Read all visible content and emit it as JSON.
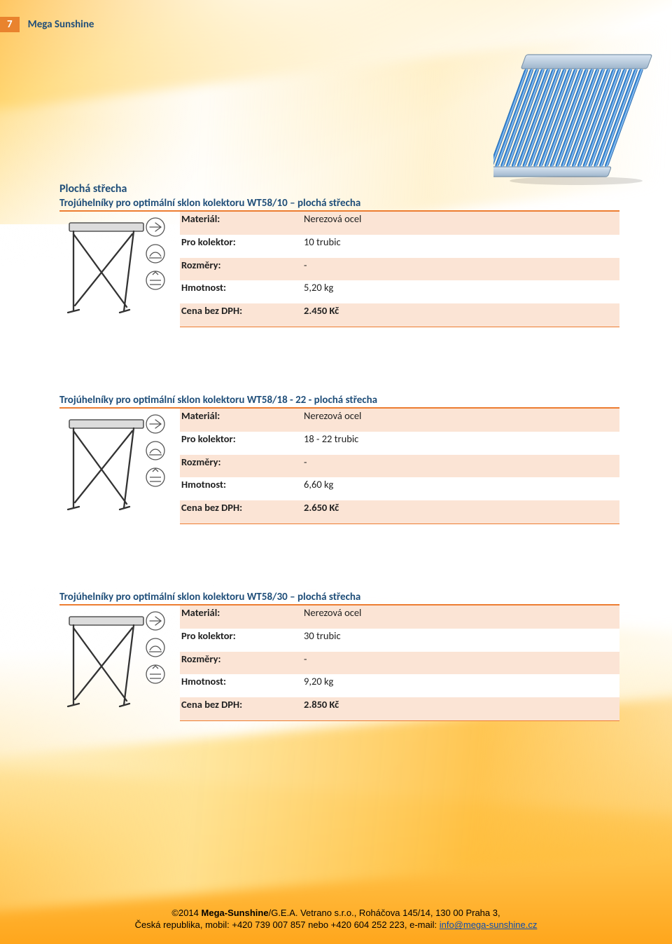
{
  "page": {
    "number": "7",
    "title": "Mega Sunshine"
  },
  "section_heading": "Plochá střecha",
  "products": [
    {
      "title": "Trojúhelníky pro optimální sklon kolektoru WT58/10 – plochá střecha",
      "specs": {
        "material": "Nerezová ocel",
        "collector": "10 trubic",
        "dims": "-",
        "weight": "5,20 kg",
        "price": "2.450 Kč"
      }
    },
    {
      "title": "Trojúhelníky pro optimální sklon kolektoru WT58/18 - 22 - plochá střecha",
      "specs": {
        "material": "Nerezová ocel",
        "collector": "18 - 22 trubic",
        "dims": "-",
        "weight": "6,60 kg",
        "price": "2.650 Kč"
      }
    },
    {
      "title": "Trojúhelníky pro optimální sklon kolektoru WT58/30 – plochá střecha",
      "specs": {
        "material": "Nerezová ocel",
        "collector": "30 trubic",
        "dims": "-",
        "weight": "9,20 kg",
        "price": "2.850 Kč"
      }
    }
  ],
  "labels": {
    "material": "Materiál:",
    "collector": "Pro kolektor:",
    "dims": "Rozměry:",
    "weight": "Hmotnost:",
    "price": "Cena bez DPH:"
  },
  "footer": {
    "line1_pre": "©2014 ",
    "brand1": "Mega-Sunshine",
    "line1_post": "/G.E.A. Vetrano s.r.o., Roháčova 145/14, 130 00 Praha 3,",
    "line2_pre": "Česká republika, mobil: +420 739 007 857 nebo +420 604 252 223, e-mail: ",
    "email": "info@mega-sunshine.cz"
  },
  "colors": {
    "accent_blue": "#1f4e79",
    "accent_orange": "#ed7d31",
    "row_fill": "#fbe4d5",
    "tab_orange": "#e9832e",
    "link_blue": "#0b4db0"
  }
}
